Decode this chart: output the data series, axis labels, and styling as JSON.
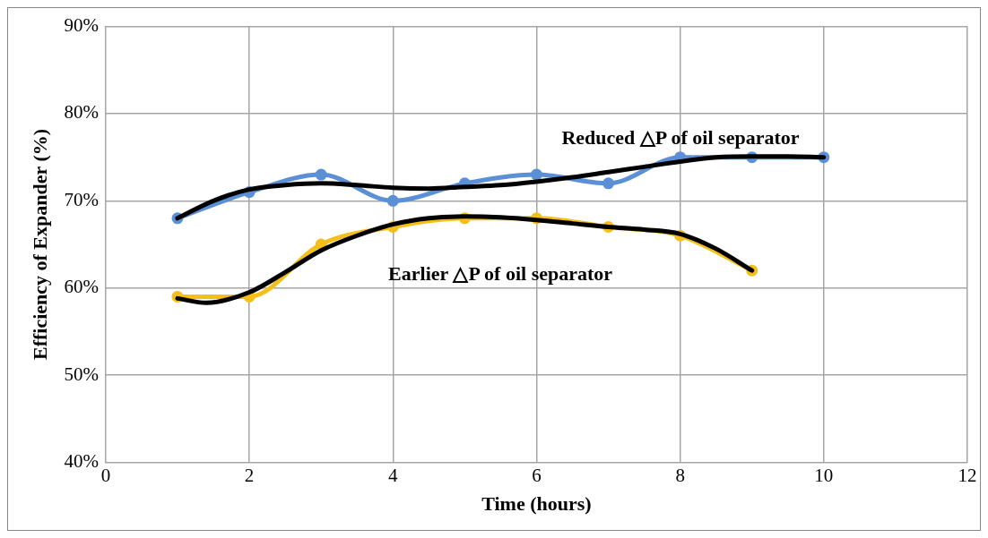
{
  "chart_data": {
    "type": "line",
    "xlabel": "Time (hours)",
    "ylabel": "Efficiency of Expander (%)",
    "xlim": [
      0,
      12
    ],
    "xticks": [
      0,
      2,
      4,
      6,
      8,
      10,
      12
    ],
    "ylim": [
      40,
      90
    ],
    "yticks": [
      {
        "value": 40,
        "label": "40%"
      },
      {
        "value": 50,
        "label": "50%"
      },
      {
        "value": 60,
        "label": "60%"
      },
      {
        "value": 70,
        "label": "70%"
      },
      {
        "value": 80,
        "label": "80%"
      },
      {
        "value": 90,
        "label": "90%"
      }
    ],
    "grid": true,
    "legend": false,
    "series": [
      {
        "color": "#5b8fd6",
        "marker": "circle",
        "line_style": "solid",
        "x": [
          1,
          2,
          3,
          4,
          5,
          6,
          7,
          8,
          9,
          10
        ],
        "values": [
          68,
          71,
          73,
          70,
          72,
          73,
          72,
          75,
          75,
          75
        ]
      },
      {
        "color": "#f5bf1a",
        "marker": "circle",
        "line_style": "solid",
        "x": [
          1,
          2,
          3,
          4,
          5,
          6,
          7,
          8,
          9
        ],
        "values": [
          59,
          59,
          65,
          67,
          68,
          68,
          67,
          66,
          62
        ]
      },
      {
        "color": "#000000",
        "marker": "none",
        "line_style": "solid",
        "x": [
          1,
          1.5,
          2,
          2.5,
          3,
          3.5,
          4,
          4.5,
          5,
          5.5,
          6,
          6.5,
          7,
          7.5,
          8,
          8.5,
          9,
          9.5,
          10
        ],
        "values": [
          68,
          70,
          71.3,
          71.8,
          72,
          71.8,
          71.5,
          71.4,
          71.6,
          71.8,
          72.2,
          72.7,
          73.3,
          73.9,
          74.5,
          75,
          75.1,
          75.1,
          75
        ]
      },
      {
        "color": "#000000",
        "marker": "none",
        "line_style": "solid",
        "x": [
          1,
          1.4,
          2,
          2.5,
          3,
          3.5,
          4,
          4.5,
          5,
          5.5,
          6,
          6.5,
          7,
          7.5,
          8,
          8.5,
          9
        ],
        "values": [
          58.8,
          58.3,
          59.5,
          61.8,
          64.3,
          66,
          67.3,
          68,
          68.2,
          68.1,
          67.8,
          67.4,
          67,
          66.7,
          66.2,
          64.5,
          62
        ]
      }
    ],
    "annotations": [
      "Reduced △P of oil separator",
      "Earlier △P of oil separator"
    ]
  }
}
